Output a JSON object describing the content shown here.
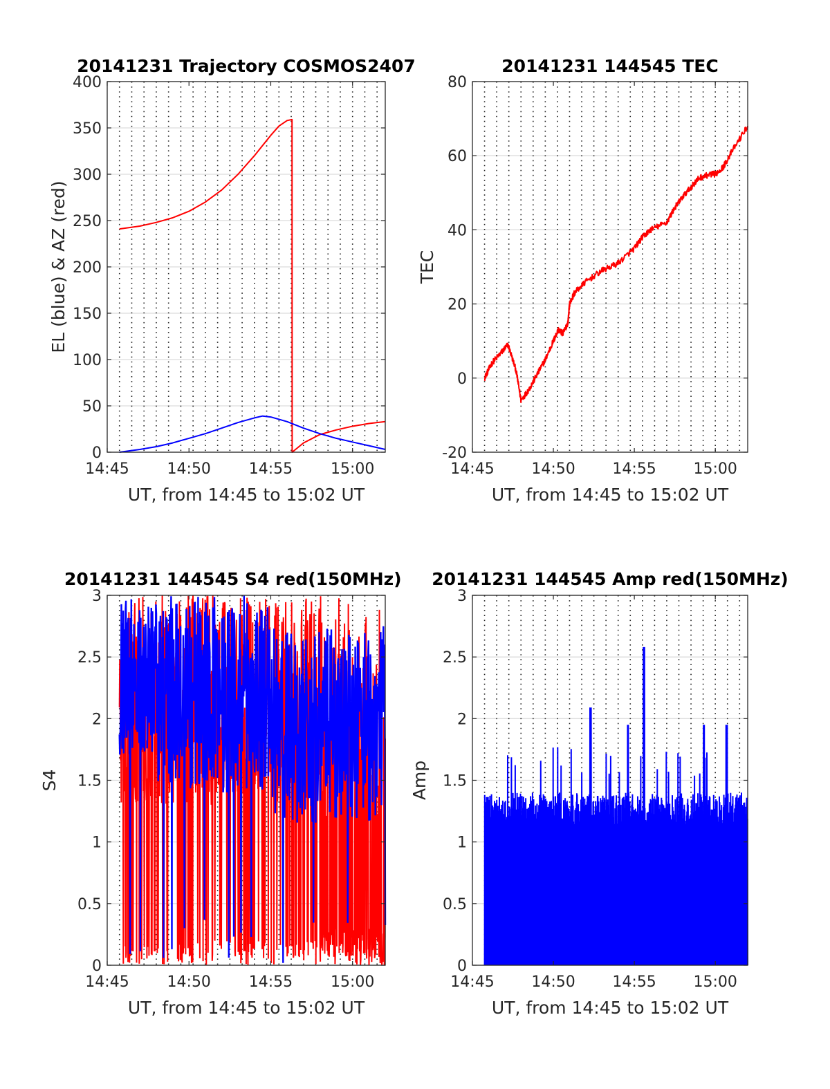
{
  "chart_data": [
    {
      "id": "traj",
      "type": "line",
      "title": "20141231 Trajectory COSMOS2407",
      "xlabel": "UT, from 14:45 to 15:02 UT",
      "ylabel": "EL (blue) & AZ (red)",
      "xlim": [
        0,
        17
      ],
      "ylim": [
        0,
        400
      ],
      "x_ticks": [
        {
          "v": 0,
          "label": "14:45"
        },
        {
          "v": 5,
          "label": "14:50"
        },
        {
          "v": 10,
          "label": "14:55"
        },
        {
          "v": 15,
          "label": "15:00"
        }
      ],
      "y_ticks": [
        {
          "v": 0,
          "label": "0"
        },
        {
          "v": 50,
          "label": "50"
        },
        {
          "v": 100,
          "label": "100"
        },
        {
          "v": 150,
          "label": "150"
        },
        {
          "v": 200,
          "label": "200"
        },
        {
          "v": 250,
          "label": "250"
        },
        {
          "v": 300,
          "label": "300"
        },
        {
          "v": 350,
          "label": "350"
        },
        {
          "v": 400,
          "label": "400"
        }
      ],
      "grid_x": [
        0.75,
        1.5,
        2.25,
        3.0,
        3.75,
        4.5,
        5.25,
        6.0,
        6.75,
        7.5,
        8.25,
        9.0,
        9.75,
        10.5,
        11.25,
        12.0,
        12.75,
        13.5,
        14.25,
        15.0,
        15.75,
        16.5
      ],
      "series": [
        {
          "color": "#ff0000",
          "x": [
            0.75,
            2,
            3,
            4,
            5,
            6,
            7,
            8,
            9,
            10,
            10.5,
            11.0,
            11.3,
            11.31,
            12,
            13,
            14,
            15,
            16,
            17
          ],
          "y": [
            241,
            244,
            248,
            253,
            260,
            270,
            283,
            300,
            320,
            342,
            352,
            358,
            359,
            0,
            10,
            19,
            24,
            28,
            31,
            33
          ]
        },
        {
          "color": "#0000ff",
          "x": [
            0.75,
            2,
            3,
            4,
            5,
            6,
            7,
            8,
            9,
            9.5,
            10,
            11,
            12,
            13,
            14,
            15,
            16,
            17
          ],
          "y": [
            0,
            3,
            6,
            10,
            15,
            20,
            26,
            32,
            37,
            39,
            38,
            33,
            26,
            20,
            15,
            11,
            7,
            3
          ]
        }
      ]
    },
    {
      "id": "tec",
      "type": "line",
      "title": "20141231 144545 TEC",
      "xlabel": "UT, from 14:45 to 15:02 UT",
      "ylabel": "TEC",
      "xlim": [
        0,
        17
      ],
      "ylim": [
        -20,
        80
      ],
      "x_ticks": [
        {
          "v": 0,
          "label": "14:45"
        },
        {
          "v": 5,
          "label": "14:50"
        },
        {
          "v": 10,
          "label": "14:55"
        },
        {
          "v": 15,
          "label": "15:00"
        }
      ],
      "y_ticks": [
        {
          "v": -20,
          "label": "-20"
        },
        {
          "v": 0,
          "label": "0"
        },
        {
          "v": 20,
          "label": "20"
        },
        {
          "v": 40,
          "label": "40"
        },
        {
          "v": 60,
          "label": "60"
        },
        {
          "v": 80,
          "label": "80"
        }
      ],
      "grid_x": [
        0.75,
        1.5,
        2.25,
        3.0,
        3.75,
        4.5,
        5.25,
        6.0,
        6.75,
        7.5,
        8.25,
        9.0,
        9.75,
        10.5,
        11.25,
        12.0,
        12.75,
        13.5,
        14.25,
        15.0,
        15.75,
        16.5
      ],
      "series": [
        {
          "color": "#ff0000",
          "x": [
            0.75,
            1.2,
            1.8,
            2.2,
            2.7,
            3.0,
            3.5,
            4.0,
            4.5,
            5.0,
            5.3,
            5.6,
            5.9,
            6.0,
            6.3,
            7.0,
            8.0,
            9.0,
            10.0,
            10.5,
            11.0,
            12.0,
            12.5,
            13.0,
            13.6,
            14.0,
            14.7,
            15.0,
            15.5,
            16.0,
            17.0
          ],
          "y": [
            0,
            4,
            7,
            9,
            2,
            -6,
            -3,
            1,
            5,
            10,
            13,
            12,
            15,
            20,
            23,
            26,
            29,
            31,
            35,
            38,
            40,
            42,
            46,
            49,
            52,
            54,
            55,
            55,
            57,
            61,
            68
          ]
        }
      ]
    },
    {
      "id": "s4",
      "type": "line",
      "title": "20141231 144545 S4 red(150MHz)",
      "xlabel": "UT, from 14:45 to 15:02 UT",
      "ylabel": "S4",
      "xlim": [
        0,
        17
      ],
      "ylim": [
        0,
        3
      ],
      "x_ticks": [
        {
          "v": 0,
          "label": "14:45"
        },
        {
          "v": 5,
          "label": "14:50"
        },
        {
          "v": 10,
          "label": "14:55"
        },
        {
          "v": 15,
          "label": "15:00"
        }
      ],
      "y_ticks": [
        {
          "v": 0,
          "label": "0"
        },
        {
          "v": 0.5,
          "label": "0.5"
        },
        {
          "v": 1,
          "label": "1"
        },
        {
          "v": 1.5,
          "label": "1.5"
        },
        {
          "v": 2,
          "label": "2"
        },
        {
          "v": 2.5,
          "label": "2.5"
        },
        {
          "v": 3,
          "label": "3"
        }
      ],
      "grid_x": [
        0.75,
        1.5,
        2.25,
        3.0,
        3.75,
        4.5,
        5.25,
        6.0,
        6.75,
        7.5,
        8.25,
        9.0,
        9.75,
        10.5,
        11.25,
        12.0,
        12.75,
        13.5,
        14.25,
        15.0,
        15.75,
        16.5
      ],
      "series": [
        {
          "color": "#ff0000",
          "x": [
            0.75,
            17.0
          ],
          "y": [
            0,
            3
          ]
        },
        {
          "color": "#0000ff",
          "x": [
            0.75,
            17.0
          ],
          "y": [
            0.9,
            3
          ]
        }
      ]
    },
    {
      "id": "amp",
      "type": "line",
      "title": "20141231 144545 Amp red(150MHz)",
      "xlabel": "UT, from 14:45 to 15:02 UT",
      "ylabel": "Amp",
      "xlim": [
        0,
        17
      ],
      "ylim": [
        0,
        3
      ],
      "x_ticks": [
        {
          "v": 0,
          "label": "14:45"
        },
        {
          "v": 5,
          "label": "14:50"
        },
        {
          "v": 10,
          "label": "14:55"
        },
        {
          "v": 15,
          "label": "15:00"
        }
      ],
      "y_ticks": [
        {
          "v": 0,
          "label": "0"
        },
        {
          "v": 0.5,
          "label": "0.5"
        },
        {
          "v": 1,
          "label": "1"
        },
        {
          "v": 1.5,
          "label": "1.5"
        },
        {
          "v": 2,
          "label": "2"
        },
        {
          "v": 2.5,
          "label": "2.5"
        },
        {
          "v": 3,
          "label": "3"
        }
      ],
      "grid_x": [
        0.75,
        1.5,
        2.25,
        3.0,
        3.75,
        4.5,
        5.25,
        6.0,
        6.75,
        7.5,
        8.25,
        9.0,
        9.75,
        10.5,
        11.25,
        12.0,
        12.75,
        13.5,
        14.25,
        15.0,
        15.75,
        16.5
      ],
      "series": [
        {
          "color": "#0000ff",
          "x": [
            0.75,
            17.0
          ],
          "y": [
            0,
            2.58
          ]
        }
      ]
    }
  ]
}
